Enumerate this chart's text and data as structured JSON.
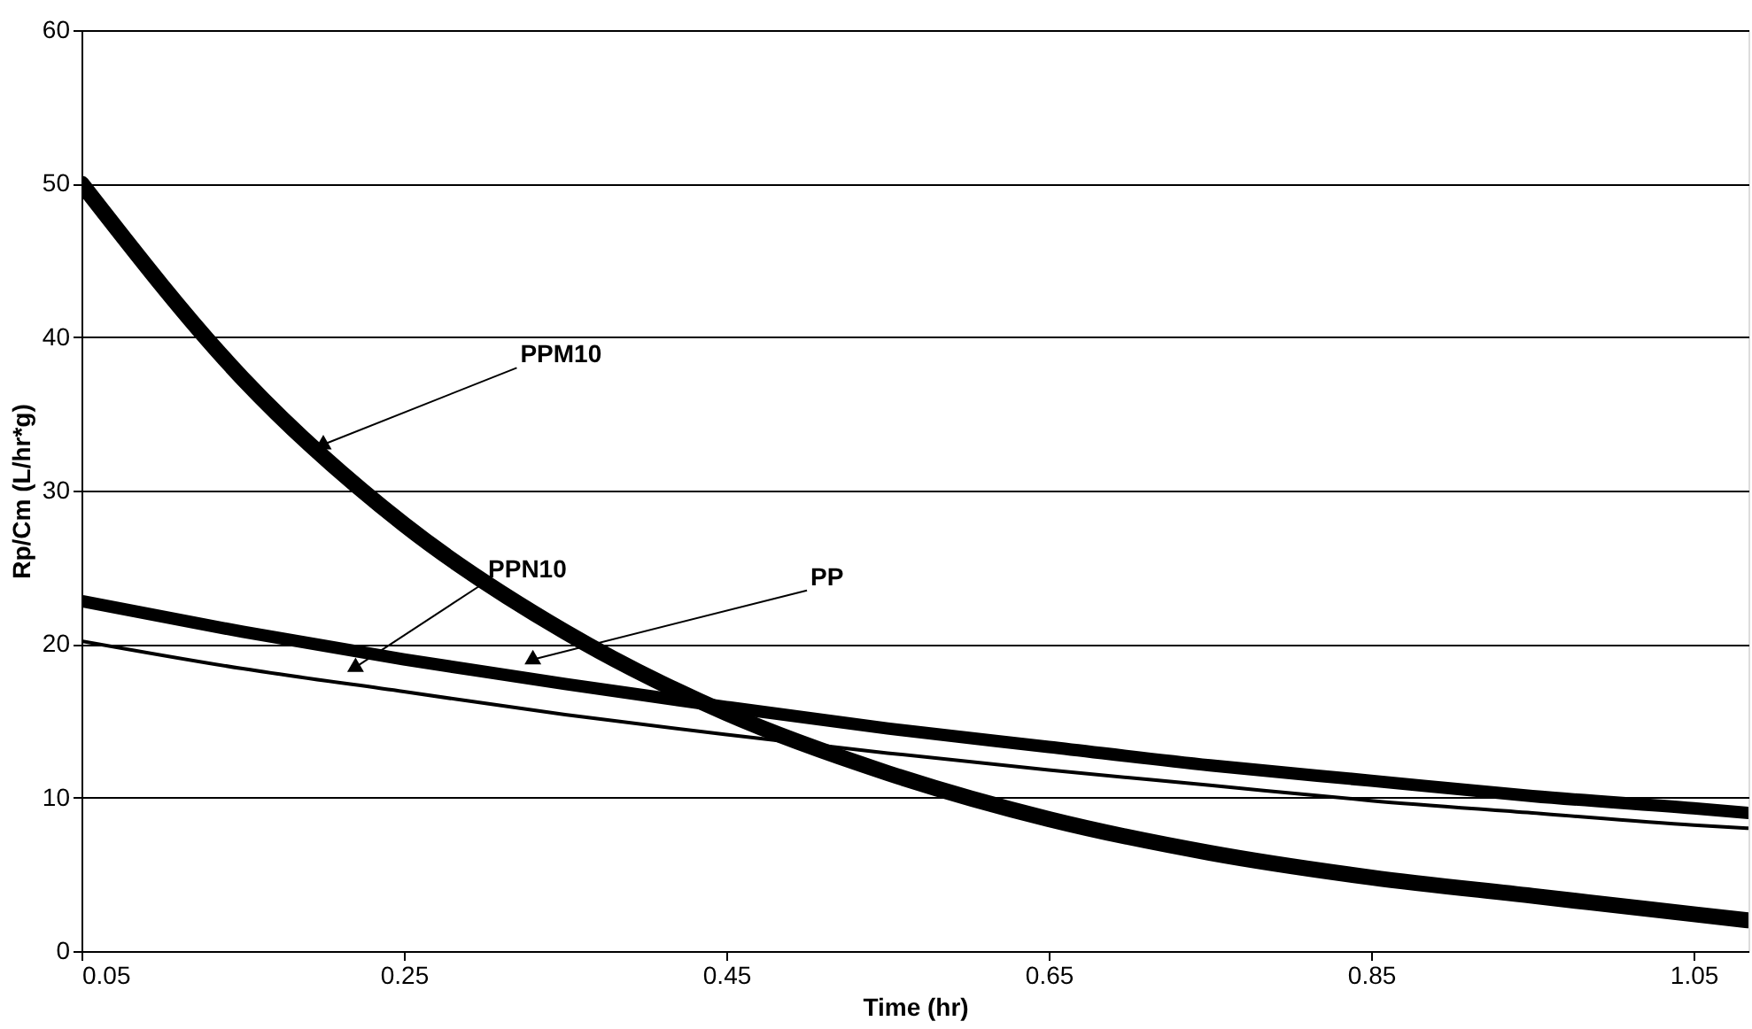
{
  "chart_data": {
    "type": "line",
    "xlabel": "Time (hr)",
    "ylabel": "Rp/Cm (L/hr*g)",
    "x": [
      0.05,
      0.15,
      0.25,
      0.35,
      0.45,
      0.55,
      0.65,
      0.75,
      0.85,
      0.95,
      1.05,
      1.084
    ],
    "series": [
      {
        "color": "#000000",
        "values": [
          50,
          37.3,
          27.8,
          20.8,
          15.5,
          11.6,
          8.6,
          6.4,
          4.8,
          3.6,
          2.4,
          2.0
        ]
      },
      {
        "color": "#000000",
        "values": [
          22.8,
          20.8,
          19.0,
          17.4,
          15.9,
          14.5,
          13.3,
          12.1,
          11.1,
          10.1,
          9.3,
          9.0
        ]
      },
      {
        "color": "#000000",
        "values": [
          20.2,
          18.4,
          16.9,
          15.4,
          14.1,
          12.9,
          11.8,
          10.8,
          9.8,
          9.0,
          8.2,
          8.0
        ]
      }
    ],
    "xlim": [
      0.05,
      1.084
    ],
    "xticks": [
      0.05,
      0.25,
      0.45,
      0.65,
      0.85,
      1.05
    ],
    "ylim": [
      0,
      60
    ],
    "yticks": [
      0,
      10,
      20,
      30,
      40,
      50,
      60
    ],
    "grid": "y",
    "marker": "none",
    "line_style": "solid",
    "annotations": [
      {
        "text": "PPM10",
        "x": 0.2,
        "y": 33
      },
      {
        "text": "PPN10",
        "x": 0.22,
        "y": 18.5
      },
      {
        "text": "PP",
        "x": 0.33,
        "y": 19
      }
    ]
  }
}
